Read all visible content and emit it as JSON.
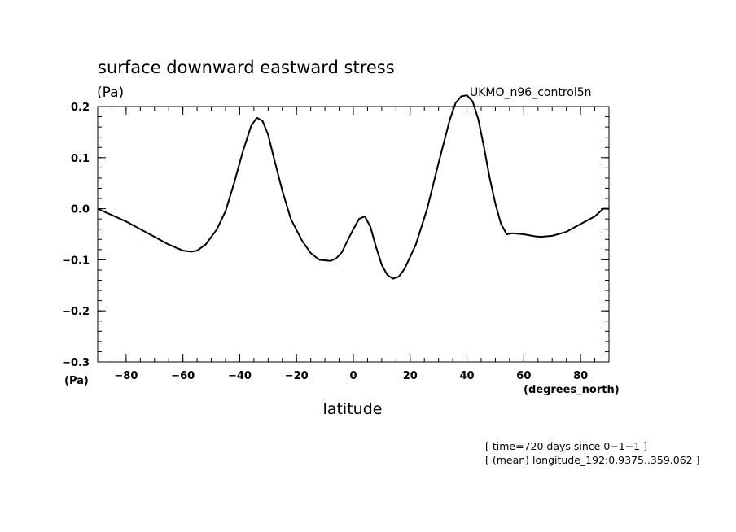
{
  "chart_data": {
    "type": "line",
    "title": "surface downward eastward stress",
    "y_unit_top": "(Pa)",
    "y_unit_bottom": "(Pa)",
    "xlabel": "latitude",
    "x_unit": "(degrees_north)",
    "series_label": "UKMO_n96_control5n",
    "xlim": [
      -90,
      90
    ],
    "ylim": [
      -0.3,
      0.2
    ],
    "x_ticks": [
      -80,
      -60,
      -40,
      -20,
      0,
      20,
      40,
      60,
      80
    ],
    "x_tick_labels": [
      "−80",
      "−60",
      "−40",
      "−20",
      "0",
      "20",
      "40",
      "60",
      "80"
    ],
    "y_ticks": [
      0.2,
      0.1,
      0.0,
      -0.1,
      -0.2,
      -0.3
    ],
    "y_tick_labels": [
      "0.2",
      "0.1",
      "0.0",
      "−0.1",
      "−0.2",
      "−0.3"
    ],
    "grid": false,
    "series": [
      {
        "x": [
          -90,
          -86,
          -80,
          -75,
          -70,
          -65,
          -60,
          -57,
          -55,
          -52,
          -48,
          -45,
          -42,
          -39,
          -36,
          -34,
          -32,
          -30,
          -28,
          -25,
          -22,
          -18,
          -15,
          -12,
          -8,
          -6,
          -4,
          -2,
          0,
          2,
          4,
          6,
          8,
          10,
          12,
          14,
          16,
          18,
          22,
          26,
          30,
          34,
          36,
          38,
          40,
          42,
          44,
          46,
          48,
          50,
          52,
          54,
          56,
          60,
          64,
          66,
          70,
          75,
          80,
          85,
          88,
          90
        ],
        "y": [
          0.0,
          -0.01,
          -0.025,
          -0.04,
          -0.055,
          -0.07,
          -0.082,
          -0.084,
          -0.082,
          -0.07,
          -0.04,
          -0.005,
          0.05,
          0.11,
          0.162,
          0.178,
          0.172,
          0.145,
          0.1,
          0.035,
          -0.02,
          -0.063,
          -0.087,
          -0.1,
          -0.102,
          -0.097,
          -0.085,
          -0.062,
          -0.04,
          -0.02,
          -0.015,
          -0.035,
          -0.075,
          -0.11,
          -0.13,
          -0.137,
          -0.133,
          -0.118,
          -0.07,
          0.0,
          0.09,
          0.175,
          0.207,
          0.22,
          0.222,
          0.21,
          0.175,
          0.12,
          0.06,
          0.01,
          -0.03,
          -0.05,
          -0.048,
          -0.05,
          -0.054,
          -0.055,
          -0.053,
          -0.045,
          -0.03,
          -0.015,
          0.0,
          0.0
        ]
      }
    ]
  },
  "footer": {
    "line1": "[ time=720 days since 0−1−1 ]",
    "line2": "[ (mean) longitude_192:0.9375..359.062 ]"
  }
}
